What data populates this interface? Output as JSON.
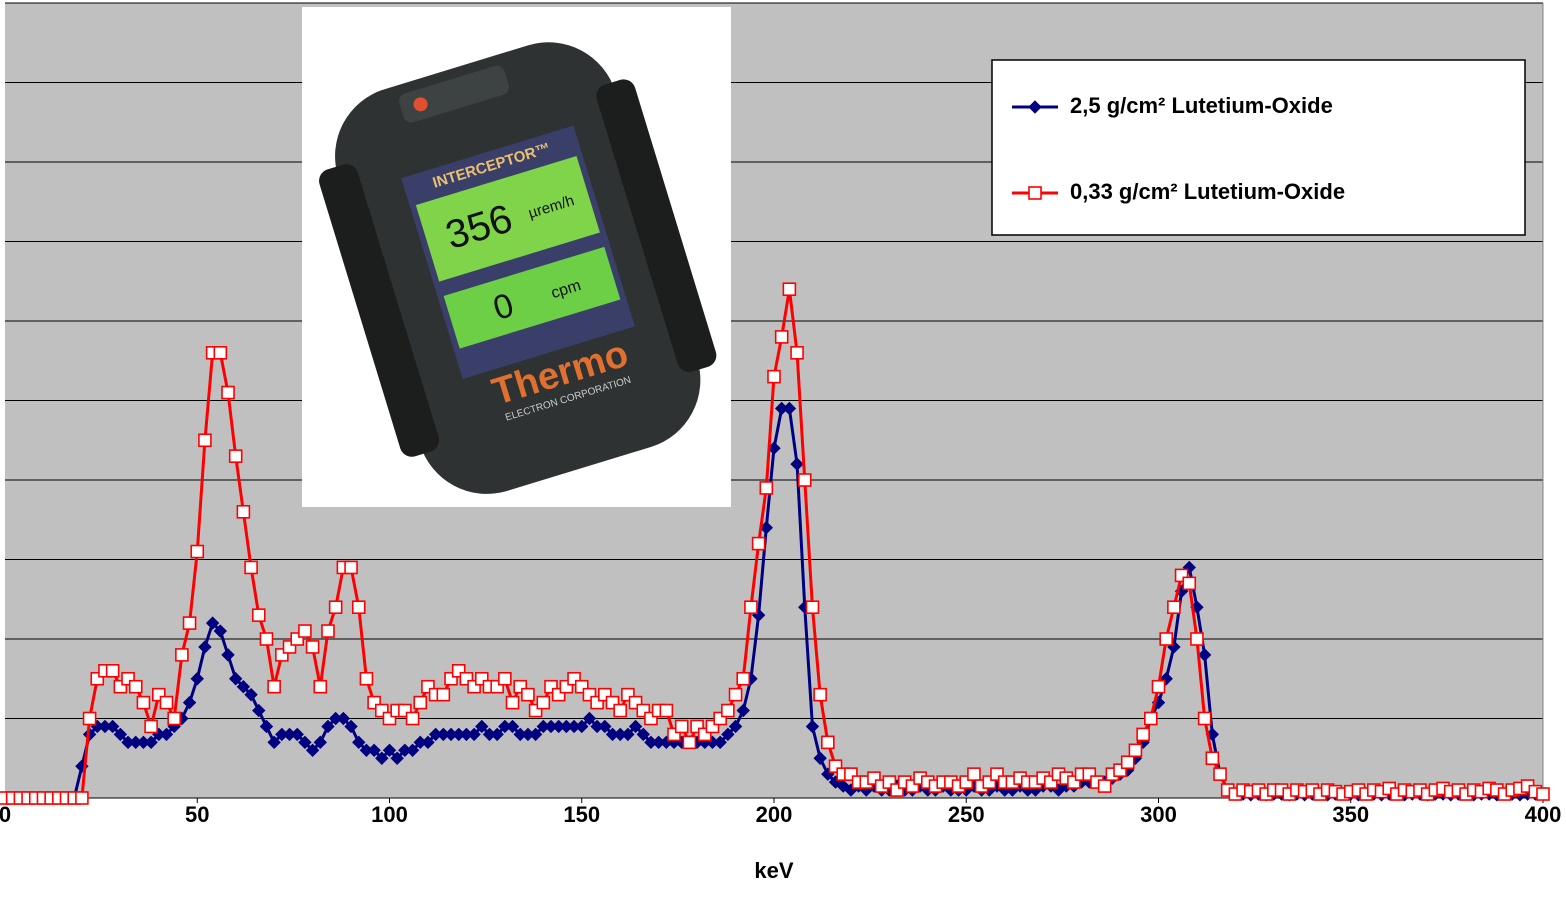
{
  "chart_data": {
    "type": "line",
    "x_label": "keV",
    "xlim": [
      0,
      400
    ],
    "xticks": [
      0,
      50,
      100,
      150,
      200,
      250,
      300,
      350,
      400
    ],
    "ylim": [
      0,
      10
    ],
    "yticks": [
      0,
      1,
      2,
      3,
      4,
      5,
      6,
      7,
      8,
      9,
      10
    ],
    "ytick_labels": false,
    "grid": true,
    "legend": "upper right",
    "x": [
      0,
      2,
      4,
      6,
      8,
      10,
      12,
      14,
      16,
      18,
      20,
      22,
      24,
      26,
      28,
      30,
      32,
      34,
      36,
      38,
      40,
      42,
      44,
      46,
      48,
      50,
      52,
      54,
      56,
      58,
      60,
      62,
      64,
      66,
      68,
      70,
      72,
      74,
      76,
      78,
      80,
      82,
      84,
      86,
      88,
      90,
      92,
      94,
      96,
      98,
      100,
      102,
      104,
      106,
      108,
      110,
      112,
      114,
      116,
      118,
      120,
      122,
      124,
      126,
      128,
      130,
      132,
      134,
      136,
      138,
      140,
      142,
      144,
      146,
      148,
      150,
      152,
      154,
      156,
      158,
      160,
      162,
      164,
      166,
      168,
      170,
      172,
      174,
      176,
      178,
      180,
      182,
      184,
      186,
      188,
      190,
      192,
      194,
      196,
      198,
      200,
      202,
      204,
      206,
      208,
      210,
      212,
      214,
      216,
      218,
      220,
      222,
      224,
      226,
      228,
      230,
      232,
      234,
      236,
      238,
      240,
      242,
      244,
      246,
      248,
      250,
      252,
      254,
      256,
      258,
      260,
      262,
      264,
      266,
      268,
      270,
      272,
      274,
      276,
      278,
      280,
      282,
      284,
      286,
      288,
      290,
      292,
      294,
      296,
      298,
      300,
      302,
      304,
      306,
      308,
      310,
      312,
      314,
      316,
      318,
      320,
      322,
      324,
      326,
      328,
      330,
      332,
      334,
      336,
      338,
      340,
      342,
      344,
      346,
      348,
      350,
      352,
      354,
      356,
      358,
      360,
      362,
      364,
      366,
      368,
      370,
      372,
      374,
      376,
      378,
      380,
      382,
      384,
      386,
      388,
      390,
      392,
      394,
      396,
      398,
      400
    ],
    "series": [
      {
        "name": "2,5 g/cm² Lutetium-Oxide",
        "color": "#000080",
        "marker": "diamond",
        "values": [
          0,
          0,
          0,
          0,
          0,
          0,
          0,
          0,
          0,
          0,
          0.4,
          0.8,
          0.9,
          0.9,
          0.9,
          0.8,
          0.7,
          0.7,
          0.7,
          0.7,
          0.8,
          0.8,
          0.9,
          1.0,
          1.2,
          1.5,
          1.9,
          2.2,
          2.1,
          1.8,
          1.5,
          1.4,
          1.3,
          1.1,
          0.9,
          0.7,
          0.8,
          0.8,
          0.8,
          0.7,
          0.6,
          0.7,
          0.9,
          1.0,
          1.0,
          0.9,
          0.7,
          0.6,
          0.6,
          0.5,
          0.6,
          0.5,
          0.6,
          0.6,
          0.7,
          0.7,
          0.8,
          0.8,
          0.8,
          0.8,
          0.8,
          0.8,
          0.9,
          0.8,
          0.8,
          0.9,
          0.9,
          0.8,
          0.8,
          0.8,
          0.9,
          0.9,
          0.9,
          0.9,
          0.9,
          0.9,
          1.0,
          0.9,
          0.9,
          0.8,
          0.8,
          0.8,
          0.9,
          0.8,
          0.7,
          0.7,
          0.7,
          0.7,
          0.7,
          0.7,
          0.7,
          0.7,
          0.7,
          0.7,
          0.8,
          0.9,
          1.1,
          1.5,
          2.3,
          3.4,
          4.4,
          4.9,
          4.9,
          4.2,
          2.4,
          0.9,
          0.5,
          0.3,
          0.2,
          0.15,
          0.1,
          0.15,
          0.1,
          0.15,
          0.1,
          0.1,
          0.15,
          0.1,
          0.1,
          0.15,
          0.1,
          0.1,
          0.15,
          0.1,
          0.1,
          0.1,
          0.15,
          0.1,
          0.1,
          0.15,
          0.1,
          0.1,
          0.15,
          0.1,
          0.1,
          0.15,
          0.15,
          0.1,
          0.15,
          0.15,
          0.2,
          0.2,
          0.2,
          0.2,
          0.25,
          0.3,
          0.35,
          0.5,
          0.7,
          1.0,
          1.2,
          1.5,
          1.9,
          2.6,
          2.9,
          2.4,
          1.8,
          0.8,
          0.3,
          0.1,
          0.05,
          0.05,
          0.04,
          0.05,
          0.04,
          0.05,
          0.05,
          0.04,
          0.05,
          0.04,
          0.05,
          0.05,
          0.04,
          0.05,
          0.05,
          0.05,
          0.04,
          0.05,
          0.05,
          0.04,
          0.05,
          0.05,
          0.04,
          0.05,
          0.05,
          0.04,
          0.05,
          0.05,
          0.04,
          0.05,
          0.05,
          0.04,
          0.05,
          0.05,
          0.04,
          0.05,
          0.05,
          0.04,
          0.05,
          0.05,
          0.05
        ]
      },
      {
        "name": "0,33 g/cm² Lutetium-Oxide",
        "color": "#ff0000",
        "marker": "square",
        "values": [
          0,
          0,
          0,
          0,
          0,
          0,
          0,
          0,
          0,
          0,
          0,
          1.0,
          1.5,
          1.6,
          1.6,
          1.4,
          1.5,
          1.4,
          1.2,
          0.9,
          1.3,
          1.2,
          1.0,
          1.8,
          2.2,
          3.1,
          4.5,
          5.6,
          5.6,
          5.1,
          4.3,
          3.6,
          2.9,
          2.3,
          2.0,
          1.4,
          1.8,
          1.9,
          2.0,
          2.1,
          1.9,
          1.4,
          2.1,
          2.4,
          2.9,
          2.9,
          2.4,
          1.5,
          1.2,
          1.1,
          1.0,
          1.1,
          1.1,
          1.0,
          1.2,
          1.4,
          1.3,
          1.3,
          1.5,
          1.6,
          1.5,
          1.4,
          1.5,
          1.4,
          1.4,
          1.5,
          1.2,
          1.4,
          1.3,
          1.1,
          1.2,
          1.4,
          1.3,
          1.4,
          1.5,
          1.4,
          1.3,
          1.2,
          1.3,
          1.2,
          1.1,
          1.3,
          1.2,
          1.1,
          1.0,
          1.1,
          1.1,
          0.8,
          0.9,
          0.7,
          0.9,
          0.8,
          0.9,
          1.0,
          1.1,
          1.3,
          1.5,
          2.4,
          3.2,
          3.9,
          5.3,
          5.8,
          6.4,
          5.6,
          4.0,
          2.4,
          1.3,
          0.7,
          0.4,
          0.3,
          0.3,
          0.2,
          0.2,
          0.25,
          0.15,
          0.2,
          0.1,
          0.2,
          0.15,
          0.25,
          0.2,
          0.15,
          0.2,
          0.2,
          0.15,
          0.2,
          0.3,
          0.15,
          0.2,
          0.3,
          0.2,
          0.2,
          0.25,
          0.2,
          0.2,
          0.25,
          0.2,
          0.3,
          0.25,
          0.2,
          0.3,
          0.3,
          0.2,
          0.15,
          0.3,
          0.35,
          0.45,
          0.6,
          0.8,
          1.0,
          1.4,
          2.0,
          2.4,
          2.8,
          2.7,
          2.0,
          1.0,
          0.5,
          0.3,
          0.1,
          0.05,
          0.1,
          0.08,
          0.1,
          0.05,
          0.1,
          0.1,
          0.05,
          0.1,
          0.08,
          0.1,
          0.05,
          0.1,
          0.08,
          0.05,
          0.08,
          0.1,
          0.05,
          0.1,
          0.08,
          0.12,
          0.05,
          0.1,
          0.08,
          0.1,
          0.05,
          0.1,
          0.12,
          0.08,
          0.1,
          0.05,
          0.1,
          0.08,
          0.12,
          0.1,
          0.05,
          0.1,
          0.12,
          0.15,
          0.08,
          0.05
        ]
      }
    ]
  },
  "inset_photo": {
    "model": "INTERCEPTOR™",
    "dose_rate": "356",
    "dose_unit": "µrem/h",
    "count_rate": "0",
    "count_unit": "cpm",
    "brand": "Thermo",
    "company": "ELECTRON CORPORATION"
  }
}
